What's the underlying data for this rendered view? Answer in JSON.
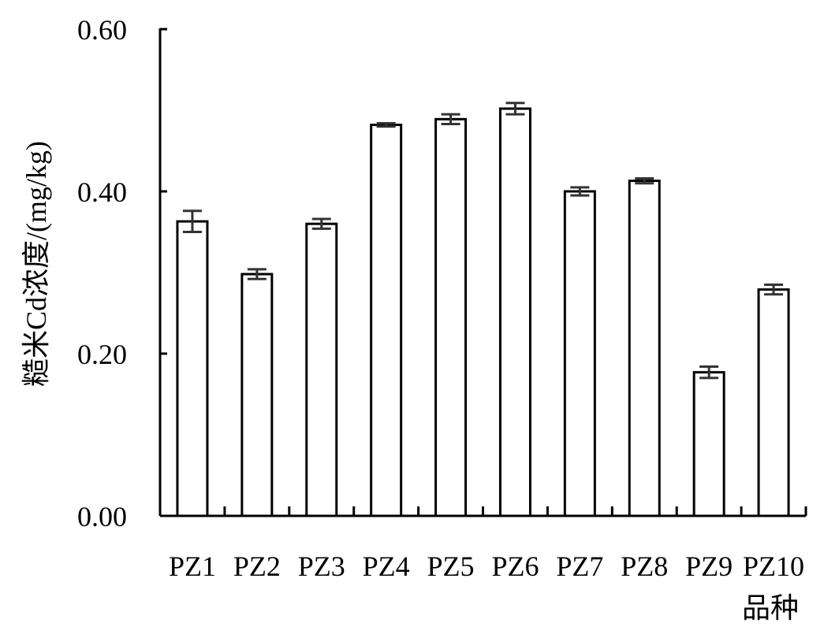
{
  "chart_data": {
    "type": "bar",
    "title": "",
    "xlabel": "品种",
    "ylabel": "糙米Cd浓度/(mg/kg)",
    "ylim": [
      0,
      0.6
    ],
    "yticks": [
      "0.00",
      "0.20",
      "0.40",
      "0.60"
    ],
    "categories": [
      "PZ1",
      "PZ2",
      "PZ3",
      "PZ4",
      "PZ5",
      "PZ6",
      "PZ7",
      "PZ8",
      "PZ9",
      "PZ10"
    ],
    "values": [
      0.363,
      0.298,
      0.36,
      0.482,
      0.489,
      0.502,
      0.4,
      0.413,
      0.177,
      0.279
    ],
    "errors": [
      0.013,
      0.006,
      0.006,
      0.002,
      0.006,
      0.007,
      0.005,
      0.003,
      0.007,
      0.006
    ],
    "grid": false,
    "legend": "none",
    "colors": {
      "bar_fill": "#ffffff",
      "bar_stroke": "#000000",
      "error_bar": "#333333",
      "axis": "#000000"
    }
  }
}
